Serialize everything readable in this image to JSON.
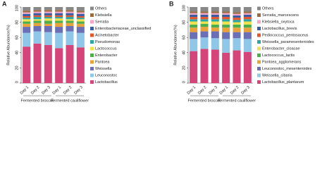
{
  "chart_data": [
    {
      "type": "bar",
      "stacked": true,
      "panel": "A",
      "ylabel": "Relative Abundance(%)",
      "categories": [
        "Day 1",
        "Day 2",
        "Day 3",
        "Day 1",
        "Day 2",
        "Day 3"
      ],
      "groups": [
        "Fermented broccoli",
        "Fermented cauliflower"
      ],
      "ylim": [
        0,
        100
      ],
      "yticks": [
        0,
        20,
        40,
        60,
        80,
        100
      ],
      "series": [
        {
          "name": "Lactobacillus",
          "color": "#d6457a",
          "values": [
            48,
            52,
            50,
            46,
            50,
            47
          ]
        },
        {
          "name": "Leuconostoc",
          "color": "#8ec7e8",
          "values": [
            18,
            16,
            17,
            20,
            18,
            19
          ]
        },
        {
          "name": "Weissella",
          "color": "#6b6fb5",
          "values": [
            8,
            7,
            8,
            8,
            7,
            8
          ]
        },
        {
          "name": "Pantoea",
          "color": "#e8a23a",
          "values": [
            4,
            4,
            3,
            5,
            4,
            4
          ]
        },
        {
          "name": "Enterobacter",
          "color": "#4daf4a",
          "values": [
            3,
            3,
            4,
            3,
            3,
            3
          ]
        },
        {
          "name": "Lactococcus",
          "color": "#f2e14b",
          "values": [
            3,
            2,
            3,
            3,
            2,
            3
          ]
        },
        {
          "name": "Pseudomonas",
          "color": "#2ca6a4",
          "values": [
            2,
            3,
            2,
            2,
            3,
            2
          ]
        },
        {
          "name": "Acinetobacter",
          "color": "#e4572e",
          "values": [
            2,
            2,
            2,
            2,
            2,
            2
          ]
        },
        {
          "name": "Enterobacteriaceae_unclassified",
          "color": "#3b5ba5",
          "values": [
            3,
            3,
            3,
            3,
            3,
            3
          ]
        },
        {
          "name": "Serratia",
          "color": "#f4a6c6",
          "values": [
            2,
            2,
            2,
            2,
            2,
            2
          ]
        },
        {
          "name": "Klebsiella",
          "color": "#9c6b3e",
          "values": [
            2,
            2,
            2,
            2,
            2,
            2
          ]
        },
        {
          "name": "Others",
          "color": "#888888",
          "values": [
            5,
            4,
            4,
            4,
            4,
            5
          ]
        }
      ]
    },
    {
      "type": "bar",
      "stacked": true,
      "panel": "B",
      "ylabel": "Relative Abundance(%)",
      "categories": [
        "Day 1",
        "Day 2",
        "Day 3",
        "Day 1",
        "Day 2",
        "Day 3"
      ],
      "groups": [
        "Fermented broccoli",
        "Fermented cauliflower"
      ],
      "ylim": [
        0,
        100
      ],
      "yticks": [
        0,
        20,
        40,
        60,
        80,
        100
      ],
      "series": [
        {
          "name": "Lactobacillus_plantarum",
          "color": "#d6457a",
          "values": [
            42,
            45,
            44,
            40,
            43,
            41
          ]
        },
        {
          "name": "Weissella_cibaria",
          "color": "#8ec7e8",
          "values": [
            16,
            15,
            15,
            18,
            16,
            17
          ]
        },
        {
          "name": "Leuconostoc_mesenteroides",
          "color": "#6b6fb5",
          "values": [
            9,
            8,
            9,
            9,
            8,
            9
          ]
        },
        {
          "name": "Pantoea_agglomerans",
          "color": "#e8a23a",
          "values": [
            6,
            6,
            5,
            6,
            6,
            6
          ]
        },
        {
          "name": "Lactococcus_lactis",
          "color": "#4daf4a",
          "values": [
            4,
            4,
            4,
            4,
            4,
            4
          ]
        },
        {
          "name": "Enterobacter_cloacae",
          "color": "#f2e14b",
          "values": [
            4,
            3,
            4,
            4,
            3,
            4
          ]
        },
        {
          "name": "Weissella_paramesenteroides",
          "color": "#2ca6a4",
          "values": [
            3,
            3,
            3,
            3,
            3,
            3
          ]
        },
        {
          "name": "Pediococcus_pentosaceus",
          "color": "#e4572e",
          "values": [
            3,
            3,
            3,
            3,
            3,
            3
          ]
        },
        {
          "name": "Lactobacillus_brevis",
          "color": "#3b5ba5",
          "values": [
            3,
            3,
            3,
            3,
            3,
            3
          ]
        },
        {
          "name": "Klebsiella_oxytoca",
          "color": "#f4a6c6",
          "values": [
            2,
            2,
            2,
            2,
            2,
            2
          ]
        },
        {
          "name": "Serratia_marcescens",
          "color": "#9c6b3e",
          "values": [
            2,
            2,
            2,
            2,
            2,
            2
          ]
        },
        {
          "name": "Others",
          "color": "#888888",
          "values": [
            6,
            6,
            6,
            6,
            7,
            6
          ]
        }
      ]
    }
  ]
}
